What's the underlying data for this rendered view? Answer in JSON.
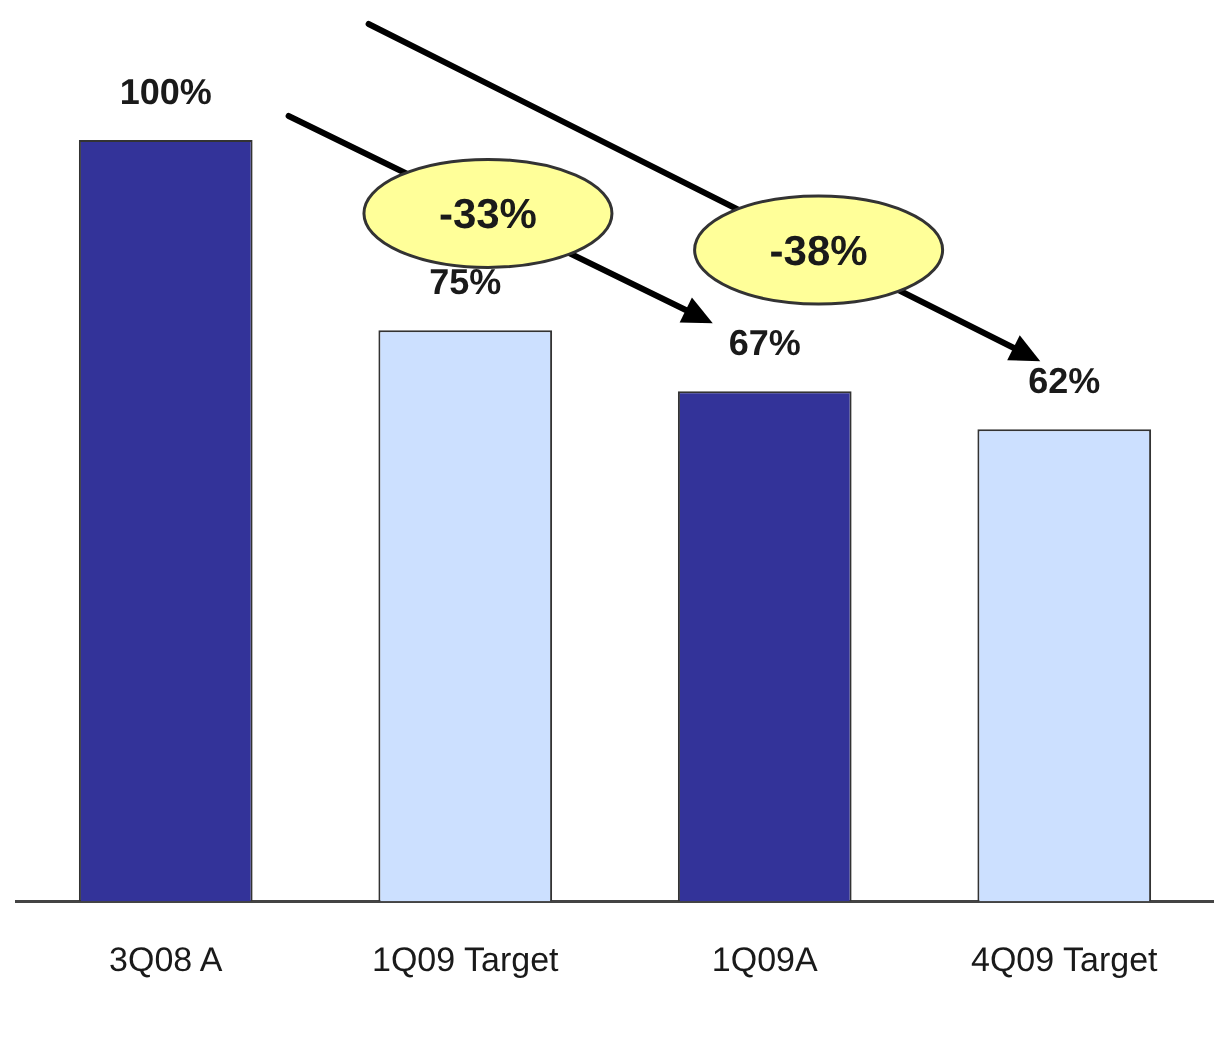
{
  "chart_data": {
    "type": "bar",
    "categories": [
      "3Q08 A",
      "1Q09 Target",
      "1Q09A",
      "4Q09 Target"
    ],
    "values": [
      100,
      75,
      67,
      62
    ],
    "colors": [
      "#333399",
      "#cce0ff",
      "#333399",
      "#cce0ff"
    ],
    "value_labels": [
      "100%",
      "75%",
      "67%",
      "62%"
    ],
    "annotations": [
      "-33%",
      "-38%"
    ],
    "grid": false,
    "legend": false
  }
}
